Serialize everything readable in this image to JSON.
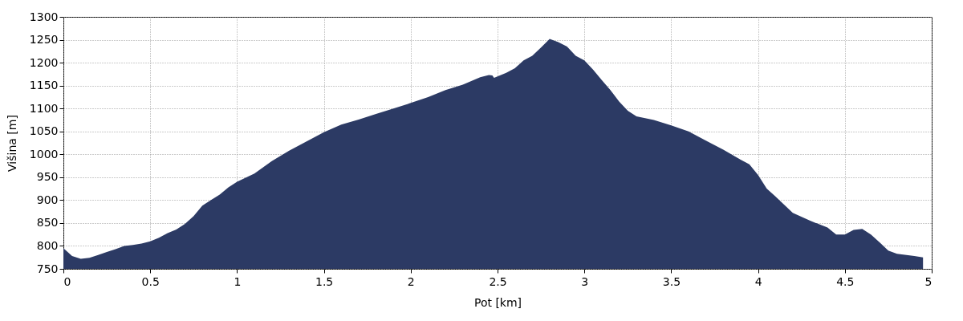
{
  "chart_data": {
    "type": "area",
    "xlabel": "Pot [km]",
    "ylabel": "Višina [m]",
    "color": "#2c3a64",
    "grid": true,
    "x": [
      0,
      0.05,
      0.1,
      0.15,
      0.2,
      0.25,
      0.3,
      0.35,
      0.4,
      0.45,
      0.5,
      0.55,
      0.6,
      0.65,
      0.7,
      0.75,
      0.8,
      0.85,
      0.9,
      0.95,
      1.0,
      1.1,
      1.2,
      1.3,
      1.4,
      1.5,
      1.6,
      1.7,
      1.8,
      1.9,
      2.0,
      2.1,
      2.2,
      2.3,
      2.4,
      2.45,
      2.47,
      2.48,
      2.55,
      2.6,
      2.65,
      2.7,
      2.75,
      2.8,
      2.85,
      2.9,
      2.95,
      3.0,
      3.05,
      3.1,
      3.15,
      3.2,
      3.25,
      3.3,
      3.4,
      3.5,
      3.6,
      3.7,
      3.8,
      3.9,
      3.95,
      4.0,
      4.05,
      4.1,
      4.15,
      4.2,
      4.3,
      4.4,
      4.45,
      4.5,
      4.55,
      4.6,
      4.65,
      4.7,
      4.75,
      4.8,
      4.9,
      4.95
    ],
    "values": [
      795,
      778,
      772,
      774,
      780,
      787,
      793,
      800,
      802,
      805,
      810,
      818,
      828,
      836,
      848,
      865,
      888,
      900,
      912,
      928,
      940,
      958,
      985,
      1008,
      1028,
      1048,
      1065,
      1076,
      1088,
      1100,
      1112,
      1125,
      1140,
      1152,
      1168,
      1173,
      1172,
      1167,
      1178,
      1188,
      1205,
      1215,
      1233,
      1252,
      1245,
      1235,
      1215,
      1205,
      1185,
      1162,
      1140,
      1115,
      1095,
      1083,
      1075,
      1063,
      1050,
      1030,
      1010,
      988,
      978,
      955,
      925,
      908,
      890,
      872,
      855,
      840,
      825,
      825,
      835,
      837,
      825,
      808,
      790,
      783,
      778,
      775
    ],
    "xlim": [
      0,
      5
    ],
    "xticks": [
      0,
      0.5,
      1,
      1.5,
      2,
      2.5,
      3,
      3.5,
      4,
      4.5,
      5
    ],
    "ylim": [
      750,
      1300
    ],
    "yticks": [
      750,
      800,
      850,
      900,
      950,
      1000,
      1050,
      1100,
      1150,
      1200,
      1250,
      1300
    ]
  }
}
